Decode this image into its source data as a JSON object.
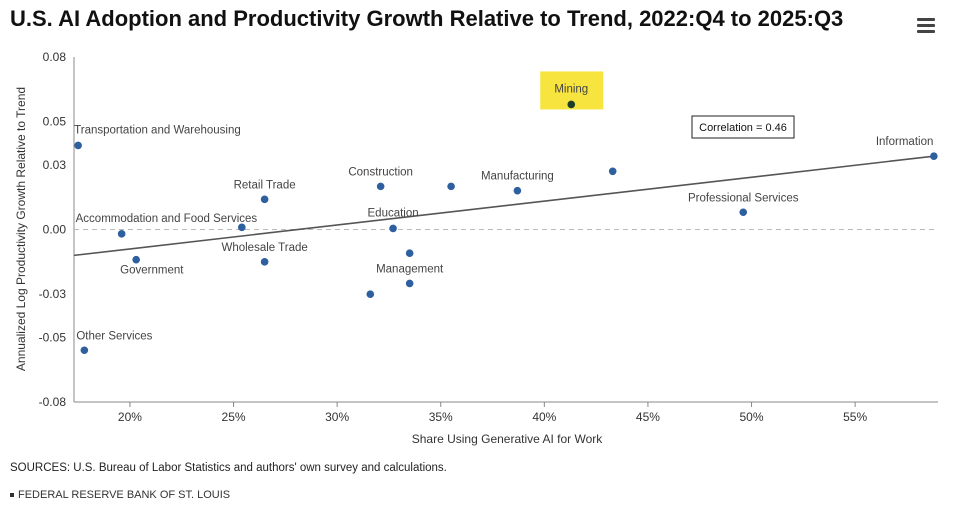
{
  "header": {
    "title": "U.S. AI Adoption and Productivity Growth Relative to Trend, 2022:Q4 to 2025:Q3"
  },
  "menu": {
    "icon": "hamburger-menu-icon"
  },
  "chart_data": {
    "type": "scatter",
    "title": "U.S. AI Adoption and Productivity Growth Relative to Trend, 2022:Q4 to 2025:Q3",
    "xlabel": "Share Using Generative AI for Work",
    "ylabel": "Annualized Log Productivity Growth Relative to Trend",
    "xlim": [
      17.3,
      59.0
    ],
    "ylim": [
      -0.08,
      0.08
    ],
    "x_ticks": [
      20,
      25,
      30,
      35,
      40,
      45,
      50,
      55
    ],
    "x_tick_labels": [
      "20%",
      "25%",
      "30%",
      "35%",
      "40%",
      "45%",
      "50%",
      "55%"
    ],
    "y_ticks": [
      0.08,
      0.05,
      0.03,
      0.0,
      -0.03,
      -0.05,
      -0.08
    ],
    "y_tick_labels": [
      "0.08",
      "0.05",
      "0.03",
      "0.00",
      "-0.03",
      "-0.05",
      "-0.08"
    ],
    "zero_line": true,
    "points": [
      {
        "label": "Transportation and Warehousing",
        "x": 17.5,
        "y": 0.039
      },
      {
        "label": "Accommodation and Food Services",
        "x": 19.6,
        "y": -0.002
      },
      {
        "label": "Government",
        "x": 20.3,
        "y": -0.014
      },
      {
        "label": "Other Services",
        "x": 17.8,
        "y": -0.056
      },
      {
        "label": "Retail Trade",
        "x": 26.5,
        "y": 0.014
      },
      {
        "label": "",
        "x": 25.4,
        "y": 0.001
      },
      {
        "label": "Wholesale Trade",
        "x": 26.5,
        "y": -0.015
      },
      {
        "label": "Construction",
        "x": 32.1,
        "y": 0.02
      },
      {
        "label": "",
        "x": 35.5,
        "y": 0.02
      },
      {
        "label": "Education",
        "x": 32.7,
        "y": 0.0005
      },
      {
        "label": "",
        "x": 33.5,
        "y": -0.011
      },
      {
        "label": "Management",
        "x": 33.5,
        "y": -0.025
      },
      {
        "label": "",
        "x": 31.6,
        "y": -0.03
      },
      {
        "label": "Manufacturing",
        "x": 38.7,
        "y": 0.018
      },
      {
        "label": "Mining",
        "x": 41.3,
        "y": 0.058,
        "highlight": true
      },
      {
        "label": "",
        "x": 43.3,
        "y": 0.027
      },
      {
        "label": "Professional Services",
        "x": 49.6,
        "y": 0.008
      },
      {
        "label": "Information",
        "x": 58.8,
        "y": 0.034
      }
    ],
    "trendline": {
      "x": [
        17.3,
        58.8
      ],
      "y": [
        -0.012,
        0.034
      ]
    },
    "annotation": "Correlation = 0.46",
    "highlight_color": "#f7e43f",
    "point_color": "#2e5f9e",
    "highlight_point_color": "#1e3d26"
  },
  "footer": {
    "sources": "SOURCES: U.S. Bureau of Labor Statistics and authors' own survey and calculations.",
    "org": "FEDERAL RESERVE BANK OF ST. LOUIS"
  }
}
